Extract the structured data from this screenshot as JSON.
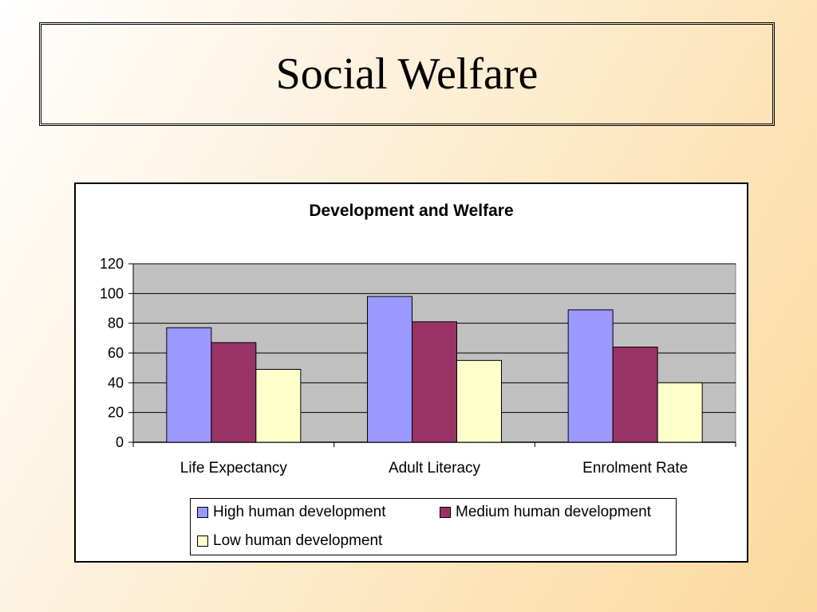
{
  "slide": {
    "title": "Social Welfare"
  },
  "chart_data": {
    "type": "bar",
    "title": "Development and Welfare",
    "categories": [
      "Life Expectancy",
      "Adult Literacy",
      "Enrolment Rate"
    ],
    "series": [
      {
        "name": "High human development",
        "values": [
          77,
          98,
          89
        ],
        "color": "#9999ff"
      },
      {
        "name": "Medium human development",
        "values": [
          67,
          81,
          64
        ],
        "color": "#993366"
      },
      {
        "name": "Low human development",
        "values": [
          49,
          55,
          40
        ],
        "color": "#ffffcc"
      }
    ],
    "ylim": [
      0,
      120
    ],
    "yticks": [
      0,
      20,
      40,
      60,
      80,
      100,
      120
    ],
    "grid": true,
    "plot_background": "#c0c0c0",
    "legend_position": "bottom"
  }
}
